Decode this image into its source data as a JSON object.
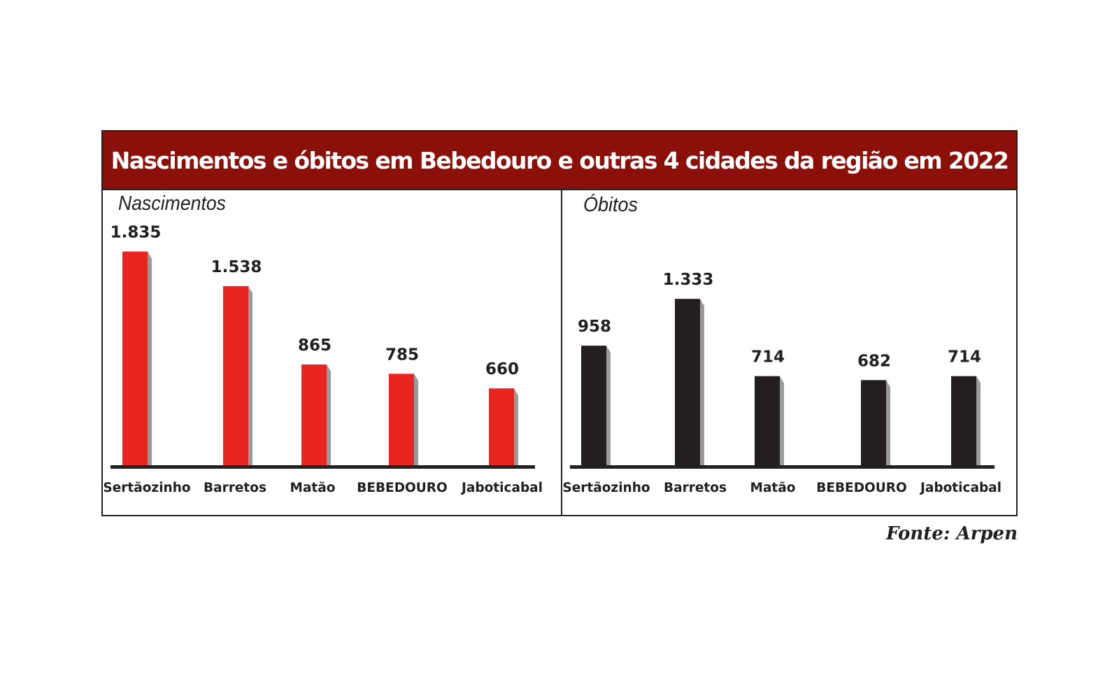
{
  "title": "Nascimentos e óbitos em Bebedouro e outras 4 cidades da região em 2022",
  "source": "Fonte: Arpen",
  "colors": {
    "header_bg": "#8b1009",
    "births_bar": "#e8251f",
    "deaths_bar": "#231f20",
    "bar_shadow": "#9a9a9a",
    "ink": "#231f20"
  },
  "chart_data": [
    {
      "type": "bar",
      "title": "Nascimentos",
      "categories": [
        "Sertãozinho",
        "Barretos",
        "Matão",
        "BEBEDOURO",
        "Jaboticabal"
      ],
      "values": [
        1835,
        1538,
        865,
        785,
        660
      ],
      "value_labels": [
        "1.835",
        "1.538",
        "865",
        "785",
        "660"
      ],
      "color": "#e8251f",
      "grid": false
    },
    {
      "type": "bar",
      "title": "Óbitos",
      "categories": [
        "Sertãozinho",
        "Barretos",
        "Matão",
        "BEBEDOURO",
        "Jaboticabal"
      ],
      "values": [
        958,
        1333,
        714,
        682,
        714
      ],
      "value_labels": [
        "958",
        "1.333",
        "714",
        "682",
        "714"
      ],
      "color": "#231f20",
      "grid": false
    }
  ]
}
